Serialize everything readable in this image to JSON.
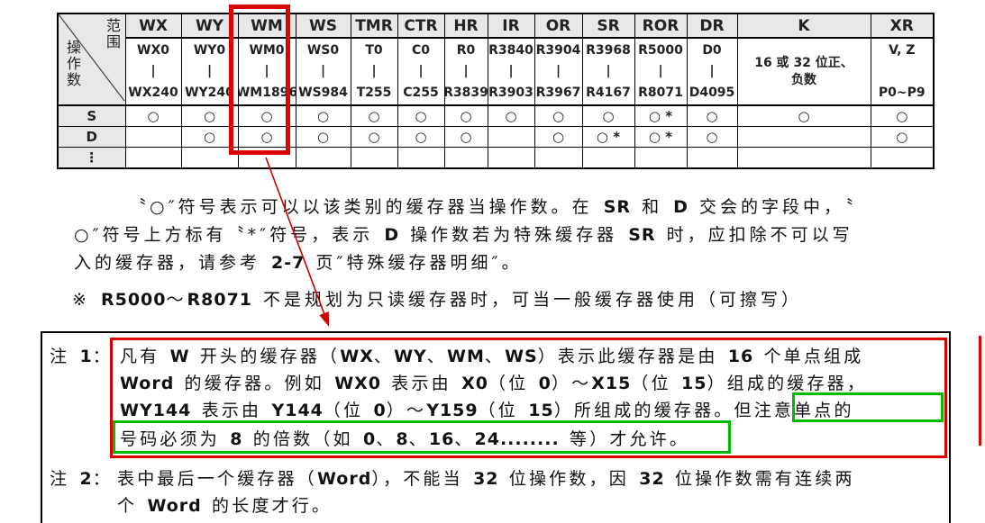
{
  "colors": {
    "annotation_red": "#dd0000",
    "annotation_green": "#00bb00",
    "header_gray": "#e8e8e8"
  },
  "table": {
    "corner": {
      "top_label": "范围",
      "bottom_label": "操作数"
    },
    "row_labels": {
      "s": "S",
      "d": "D",
      "dots": "⋮"
    },
    "columns": [
      {
        "header": "WX",
        "r1": "WX0",
        "r2": "|",
        "r3": "WX240",
        "s": "○",
        "d": ""
      },
      {
        "header": "WY",
        "r1": "WY0",
        "r2": "|",
        "r3": "WY240",
        "s": "○",
        "d": "○"
      },
      {
        "header": "WM",
        "r1": "WM0",
        "r2": "|",
        "r3": "WM1896",
        "s": "○",
        "d": "○"
      },
      {
        "header": "WS",
        "r1": "WS0",
        "r2": "|",
        "r3": "WS984",
        "s": "○",
        "d": "○"
      },
      {
        "header": "TMR",
        "r1": "T0",
        "r2": "|",
        "r3": "T255",
        "s": "○",
        "d": "○"
      },
      {
        "header": "CTR",
        "r1": "C0",
        "r2": "|",
        "r3": "C255",
        "s": "○",
        "d": "○"
      },
      {
        "header": "HR",
        "r1": "R0",
        "r2": "|",
        "r3": "R3839",
        "s": "○",
        "d": "○"
      },
      {
        "header": "IR",
        "r1": "R3840",
        "r2": "|",
        "r3": "R3903",
        "s": "○",
        "d": ""
      },
      {
        "header": "OR",
        "r1": "R3904",
        "r2": "|",
        "r3": "R3967",
        "s": "○",
        "d": "○"
      },
      {
        "header": "SR",
        "r1": "R3968",
        "r2": "|",
        "r3": "R4167",
        "s": "○",
        "d": "○ *"
      },
      {
        "header": "ROR",
        "r1": "R5000",
        "r2": "|",
        "r3": "R8071",
        "s": "○ *",
        "d": "○ *"
      },
      {
        "header": "DR",
        "r1": "D0",
        "r2": "|",
        "r3": "D4095",
        "s": "○",
        "d": "○"
      },
      {
        "header": "K",
        "r1": "16 或 32 位正、",
        "r2": "负数",
        "r3": "",
        "s": "○",
        "d": ""
      },
      {
        "header": "XR",
        "r1": "V, Z",
        "r2": "",
        "r3": "P0~P9",
        "s": "○",
        "d": "○"
      }
    ]
  },
  "paragraphs": {
    "p1_line1": "〝○″符号表示可以以该类别的缓存器当操作数。在 SR 和 D 交会的字段中，〝",
    "p1_line2": "○″符号上方标有〝*″符号，表示 D 操作数若为特殊缓存器 SR 时，应扣除不可以写",
    "p1_line3": "入的缓存器，请参考 2-7 页″特殊缓存器明细″。",
    "p2": "※ R5000～R8071 不是规划为只读缓存器时，可当一般缓存器使用（可擦写）"
  },
  "notes": {
    "note1_label": "注 1：",
    "note1_line1": "凡有 W 开头的缓存器（WX、WY、WM、WS）表示此缓存器是由 16 个单点组成",
    "note1_line2": "Word 的缓存器。例如 WX0 表示由 X0（位 0）～X15（位 15）组成的缓存器，",
    "note1_line3": "WY144 表示由 Y144（位 0）～Y159（位 15）所组成的缓存器。但注意单点的",
    "note1_line4": "号码必须为 8 的倍数（如 0、8、16、24........ 等）才允许。",
    "note2_label": "注 2：",
    "note2_line1": "表中最后一个缓存器（Word），不能当 32 位操作数，因 32 位操作数需有连续两",
    "note2_line2": "个 Word 的长度才行。"
  }
}
